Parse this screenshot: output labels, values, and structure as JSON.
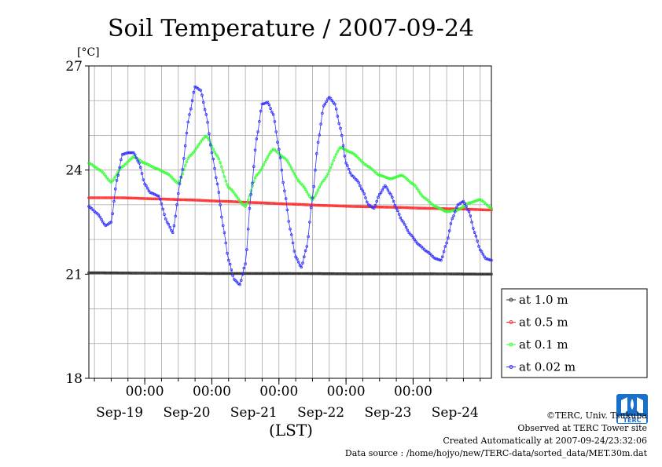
{
  "chart_data": {
    "type": "line",
    "title": "Soil Temperature / 2007-09-24",
    "ylabel": "[°C]",
    "xlabel": "(LST)",
    "ylim": [
      18,
      27
    ],
    "xlim": [
      0,
      144
    ],
    "yticks": [
      {
        "label": "27",
        "value": 27
      },
      {
        "label": "24",
        "value": 24
      },
      {
        "label": "21",
        "value": 21
      },
      {
        "label": "18",
        "value": 18
      }
    ],
    "time_ticks": [
      {
        "label": "00:00",
        "x": 20
      },
      {
        "label": "00:00",
        "x": 44
      },
      {
        "label": "00:00",
        "x": 68
      },
      {
        "label": "00:00",
        "x": 92
      },
      {
        "label": "00:00",
        "x": 116
      }
    ],
    "date_labels": [
      {
        "label": "Sep-19",
        "x": 11
      },
      {
        "label": "Sep-20",
        "x": 35
      },
      {
        "label": "Sep-21",
        "x": 59
      },
      {
        "label": "Sep-22",
        "x": 83
      },
      {
        "label": "Sep-23",
        "x": 107
      },
      {
        "label": "Sep-24",
        "x": 131
      }
    ],
    "legend_position": "bottom-right, outside plot",
    "series": [
      {
        "name": "at 1.0 m",
        "color": "#333333",
        "points": [
          [
            0,
            21.04
          ],
          [
            24,
            21.03
          ],
          [
            48,
            21.02
          ],
          [
            72,
            21.02
          ],
          [
            96,
            21.01
          ],
          [
            120,
            21.01
          ],
          [
            144,
            21.0
          ]
        ]
      },
      {
        "name": "at 0.5 m",
        "color": "#ff3333",
        "points": [
          [
            0,
            23.2
          ],
          [
            12,
            23.2
          ],
          [
            24,
            23.17
          ],
          [
            36,
            23.14
          ],
          [
            48,
            23.1
          ],
          [
            60,
            23.06
          ],
          [
            72,
            23.02
          ],
          [
            84,
            22.98
          ],
          [
            96,
            22.95
          ],
          [
            108,
            22.93
          ],
          [
            120,
            22.9
          ],
          [
            132,
            22.88
          ],
          [
            144,
            22.85
          ]
        ]
      },
      {
        "name": "at 0.1 m",
        "color": "#33ff33",
        "points": [
          [
            0,
            24.2
          ],
          [
            4,
            24.0
          ],
          [
            8,
            23.65
          ],
          [
            12,
            24.1
          ],
          [
            16,
            24.38
          ],
          [
            20,
            24.2
          ],
          [
            24,
            24.05
          ],
          [
            28,
            23.9
          ],
          [
            32,
            23.62
          ],
          [
            36,
            24.4
          ],
          [
            42,
            24.98
          ],
          [
            46,
            24.4
          ],
          [
            50,
            23.5
          ],
          [
            56,
            22.95
          ],
          [
            60,
            23.85
          ],
          [
            66,
            24.6
          ],
          [
            70,
            24.35
          ],
          [
            76,
            23.6
          ],
          [
            80,
            23.15
          ],
          [
            84,
            23.7
          ],
          [
            90,
            24.65
          ],
          [
            94,
            24.5
          ],
          [
            100,
            24.1
          ],
          [
            104,
            23.85
          ],
          [
            108,
            23.75
          ],
          [
            112,
            23.85
          ],
          [
            116,
            23.6
          ],
          [
            120,
            23.2
          ],
          [
            124,
            22.95
          ],
          [
            128,
            22.8
          ],
          [
            132,
            22.85
          ],
          [
            136,
            23.05
          ],
          [
            140,
            23.15
          ],
          [
            144,
            22.9
          ]
        ]
      },
      {
        "name": "at 0.02 m",
        "color": "#3333ff",
        "points": [
          [
            0,
            22.95
          ],
          [
            3,
            22.75
          ],
          [
            6,
            22.4
          ],
          [
            8,
            22.5
          ],
          [
            10,
            23.7
          ],
          [
            12,
            24.45
          ],
          [
            14,
            24.5
          ],
          [
            16,
            24.5
          ],
          [
            18,
            24.2
          ],
          [
            20,
            23.6
          ],
          [
            22,
            23.35
          ],
          [
            25,
            23.25
          ],
          [
            28,
            22.5
          ],
          [
            30,
            22.2
          ],
          [
            33,
            23.8
          ],
          [
            36,
            25.6
          ],
          [
            38,
            26.4
          ],
          [
            40,
            26.3
          ],
          [
            42,
            25.6
          ],
          [
            44,
            24.5
          ],
          [
            46,
            23.6
          ],
          [
            48,
            22.4
          ],
          [
            50,
            21.4
          ],
          [
            52,
            20.85
          ],
          [
            54,
            20.7
          ],
          [
            56,
            21.3
          ],
          [
            58,
            23.3
          ],
          [
            60,
            24.9
          ],
          [
            62,
            25.9
          ],
          [
            64,
            25.95
          ],
          [
            66,
            25.6
          ],
          [
            68,
            24.6
          ],
          [
            70,
            23.4
          ],
          [
            72,
            22.3
          ],
          [
            74,
            21.5
          ],
          [
            76,
            21.2
          ],
          [
            78,
            21.8
          ],
          [
            80,
            23.2
          ],
          [
            82,
            24.8
          ],
          [
            84,
            25.85
          ],
          [
            86,
            26.1
          ],
          [
            88,
            25.9
          ],
          [
            90,
            25.2
          ],
          [
            92,
            24.2
          ],
          [
            94,
            23.85
          ],
          [
            96,
            23.7
          ],
          [
            98,
            23.4
          ],
          [
            100,
            23.0
          ],
          [
            102,
            22.9
          ],
          [
            104,
            23.3
          ],
          [
            106,
            23.55
          ],
          [
            108,
            23.3
          ],
          [
            110,
            22.9
          ],
          [
            112,
            22.55
          ],
          [
            115,
            22.15
          ],
          [
            118,
            21.85
          ],
          [
            121,
            21.65
          ],
          [
            124,
            21.45
          ],
          [
            126,
            21.4
          ],
          [
            128,
            21.9
          ],
          [
            130,
            22.6
          ],
          [
            132,
            23.0
          ],
          [
            134,
            23.1
          ],
          [
            136,
            22.8
          ],
          [
            138,
            22.2
          ],
          [
            140,
            21.7
          ],
          [
            142,
            21.45
          ],
          [
            144,
            21.4
          ]
        ]
      }
    ]
  },
  "credits": {
    "line1": "©TERC, Univ. Tsukuba",
    "line2": "Observed at TERC Tower site",
    "line3": "Created Automatically at 2007-09-24/23:32:06",
    "line4": "Data source : /home/hojyo/new/TERC-data/sorted_data/MET.30m.dat"
  },
  "logo": {
    "text": "TERC",
    "color": "#1a6fc9"
  }
}
